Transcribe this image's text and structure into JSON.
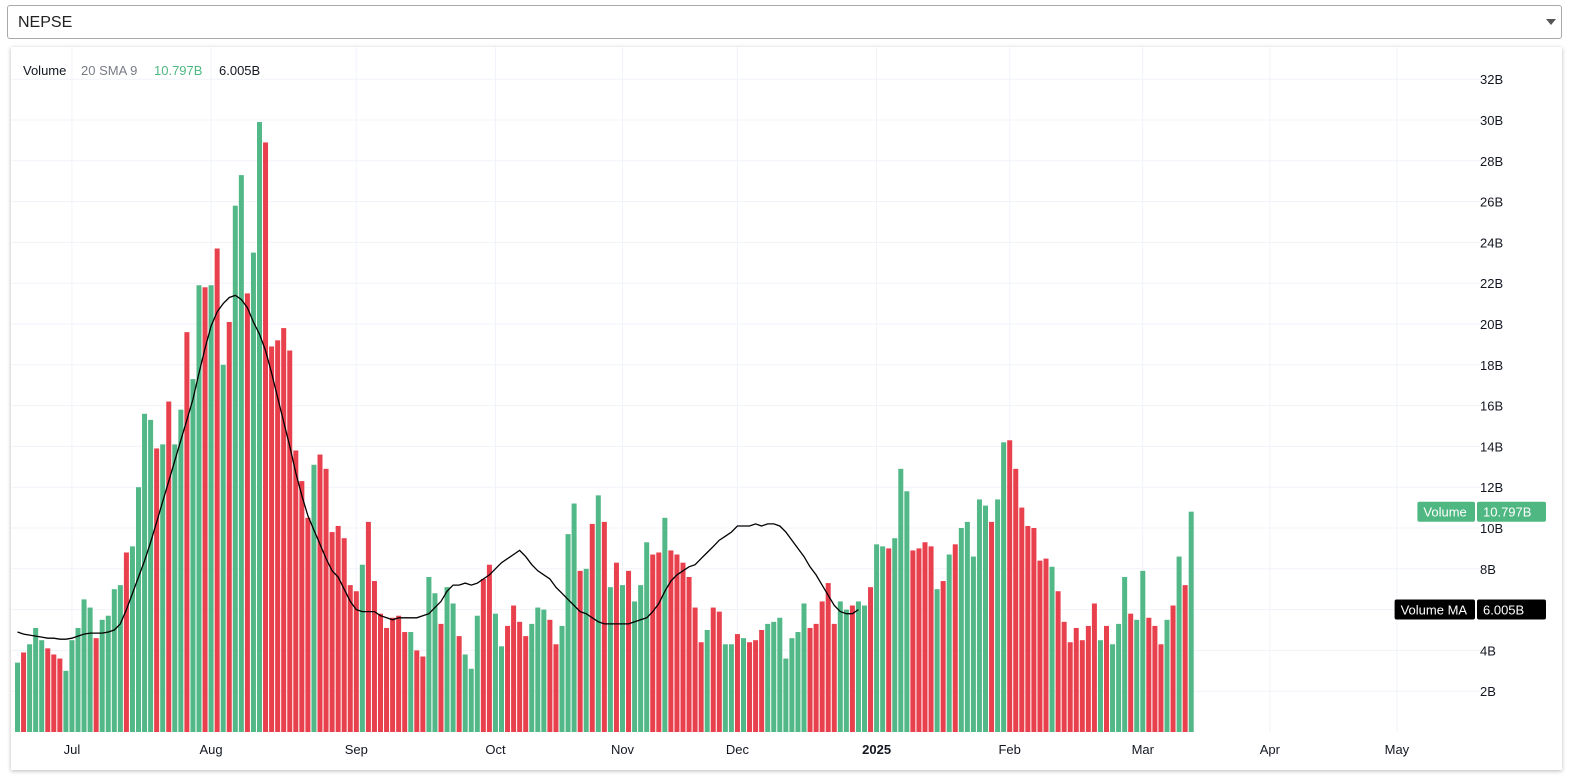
{
  "symbol_select": {
    "value": "NEPSE"
  },
  "legend": {
    "series_name": "Volume",
    "indicator_name": "20 SMA 9",
    "volume_value": "10.797B",
    "ma_value": "6.005B"
  },
  "price_tags": [
    {
      "label": "Volume",
      "value": "10.797B",
      "level": 10.797,
      "color": "#4fb782",
      "text_color": "#ffffff"
    },
    {
      "label": "Volume MA",
      "value": "6.005B",
      "level": 6.005,
      "color": "#000000",
      "text_color": "#ffffff"
    }
  ],
  "colors": {
    "up": "#52b887",
    "down": "#e8404d",
    "ma_line": "#000000",
    "grid": "#f0f3fa",
    "legend_up": "#4fb782"
  },
  "chart_data": {
    "type": "bar",
    "title": "",
    "xlabel": "",
    "ylabel": "",
    "ylim": [
      0,
      32.5
    ],
    "y_ticks": [
      {
        "value": 2,
        "label": "2B"
      },
      {
        "value": 4,
        "label": "4B"
      },
      {
        "value": 6,
        "label": "6B"
      },
      {
        "value": 8,
        "label": "8B"
      },
      {
        "value": 10,
        "label": "10B"
      },
      {
        "value": 12,
        "label": "12B"
      },
      {
        "value": 14,
        "label": "14B"
      },
      {
        "value": 16,
        "label": "16B"
      },
      {
        "value": 18,
        "label": "18B"
      },
      {
        "value": 20,
        "label": "20B"
      },
      {
        "value": 22,
        "label": "22B"
      },
      {
        "value": 24,
        "label": "24B"
      },
      {
        "value": 26,
        "label": "26B"
      },
      {
        "value": 28,
        "label": "28B"
      },
      {
        "value": 30,
        "label": "30B"
      },
      {
        "value": 32,
        "label": "32B"
      }
    ],
    "x_ticks": [
      {
        "label": "Jul",
        "index": 9,
        "bold": false
      },
      {
        "label": "Aug",
        "index": 32,
        "bold": false
      },
      {
        "label": "Sep",
        "index": 56,
        "bold": false
      },
      {
        "label": "Oct",
        "index": 79,
        "bold": false
      },
      {
        "label": "Nov",
        "index": 100,
        "bold": false
      },
      {
        "label": "Dec",
        "index": 119,
        "bold": false
      },
      {
        "label": "2025",
        "index": 142,
        "bold": true
      },
      {
        "label": "Feb",
        "index": 164,
        "bold": false
      },
      {
        "label": "Mar",
        "index": 186,
        "bold": false
      },
      {
        "label": "Apr",
        "index": 207,
        "bold": false
      },
      {
        "label": "May",
        "index": 228,
        "bold": false
      }
    ],
    "n_slots": 231,
    "volume_unit": "B",
    "volume": [
      3.4,
      3.9,
      4.3,
      5.1,
      4.5,
      4.1,
      3.8,
      3.6,
      3.0,
      4.5,
      5.1,
      6.5,
      6.1,
      4.6,
      5.5,
      5.7,
      7.0,
      7.2,
      8.8,
      9.1,
      12.0,
      15.6,
      15.3,
      13.9,
      14.1,
      16.2,
      14.1,
      15.8,
      19.6,
      17.3,
      21.9,
      21.8,
      21.9,
      23.7,
      18.0,
      20.1,
      25.8,
      27.3,
      21.5,
      23.5,
      29.9,
      28.9,
      18.9,
      19.2,
      19.8,
      18.7,
      13.8,
      12.3,
      10.5,
      13.1,
      13.6,
      12.9,
      9.8,
      10.1,
      9.5,
      7.2,
      6.9,
      8.2,
      10.3,
      7.4,
      5.8,
      5.1,
      5.6,
      5.7,
      4.9,
      4.9,
      4.0,
      3.7,
      7.6,
      6.8,
      5.3,
      7.1,
      6.3,
      4.7,
      3.8,
      3.1,
      5.7,
      7.5,
      8.2,
      5.8,
      4.2,
      5.2,
      6.2,
      5.4,
      4.7,
      5.3,
      6.1,
      6.0,
      5.5,
      4.3,
      5.2,
      9.7,
      11.2,
      7.9,
      8.0,
      10.2,
      11.6,
      10.3,
      7.1,
      8.3,
      7.2,
      7.9,
      6.4,
      7.2,
      9.3,
      8.7,
      8.8,
      10.5,
      8.9,
      8.7,
      8.3,
      7.6,
      6.1,
      4.4,
      5.0,
      6.1,
      5.9,
      4.3,
      4.3,
      4.8,
      4.6,
      4.4,
      4.5,
      5.0,
      5.3,
      5.4,
      5.6,
      3.6,
      4.6,
      4.9,
      6.3,
      5.1,
      5.3,
      6.4,
      7.3,
      5.3,
      6.4,
      6.0,
      6.2,
      6.4,
      6.2,
      7.1,
      9.2,
      9.1,
      9.0,
      9.5,
      12.9,
      11.8,
      8.9,
      9.0,
      9.3,
      9.1,
      7.0,
      7.4,
      8.7,
      9.2,
      10.0,
      10.3,
      8.6,
      11.4,
      11.1,
      10.3,
      11.4,
      14.2,
      14.3,
      12.9,
      11.0,
      10.1,
      10.0,
      8.4,
      8.5,
      8.1,
      6.9,
      5.4,
      4.4,
      5.1,
      4.5,
      5.2,
      6.3,
      4.5,
      5.2,
      4.3,
      5.3,
      7.6,
      5.8,
      5.5,
      7.9,
      5.6,
      5.2,
      4.3,
      5.5,
      6.2,
      8.6,
      7.2,
      10.8
    ],
    "direction": [
      "up",
      "down",
      "up",
      "up",
      "up",
      "down",
      "down",
      "down",
      "up",
      "up",
      "up",
      "up",
      "up",
      "down",
      "up",
      "up",
      "up",
      "up",
      "down",
      "up",
      "up",
      "up",
      "up",
      "down",
      "up",
      "down",
      "up",
      "up",
      "down",
      "up",
      "up",
      "down",
      "up",
      "down",
      "up",
      "down",
      "up",
      "up",
      "down",
      "up",
      "up",
      "down",
      "down",
      "down",
      "down",
      "down",
      "down",
      "down",
      "down",
      "up",
      "down",
      "down",
      "down",
      "down",
      "down",
      "down",
      "down",
      "up",
      "down",
      "down",
      "down",
      "down",
      "down",
      "down",
      "down",
      "up",
      "down",
      "down",
      "up",
      "up",
      "down",
      "up",
      "up",
      "down",
      "up",
      "up",
      "up",
      "down",
      "down",
      "up",
      "up",
      "down",
      "down",
      "down",
      "down",
      "up",
      "up",
      "up",
      "down",
      "down",
      "up",
      "up",
      "up",
      "down",
      "up",
      "down",
      "up",
      "down",
      "up",
      "down",
      "up",
      "down",
      "up",
      "up",
      "up",
      "down",
      "down",
      "up",
      "down",
      "down",
      "down",
      "down",
      "down",
      "down",
      "up",
      "down",
      "down",
      "up",
      "up",
      "down",
      "up",
      "down",
      "down",
      "down",
      "up",
      "up",
      "up",
      "up",
      "up",
      "up",
      "up",
      "down",
      "down",
      "down",
      "down",
      "down",
      "up",
      "up",
      "down",
      "up",
      "up",
      "down",
      "up",
      "up",
      "down",
      "up",
      "up",
      "up",
      "down",
      "down",
      "down",
      "down",
      "up",
      "down",
      "up",
      "down",
      "up",
      "up",
      "up",
      "up",
      "up",
      "down",
      "up",
      "up",
      "down",
      "down",
      "down",
      "down",
      "down",
      "down",
      "down",
      "up",
      "down",
      "down",
      "down",
      "down",
      "down",
      "down",
      "down",
      "up",
      "down",
      "up",
      "up",
      "up",
      "down",
      "up",
      "up",
      "down",
      "down",
      "down",
      "up",
      "down",
      "up",
      "down",
      "up"
    ],
    "ma_label": "20 SMA 9",
    "ma": [
      4.9,
      4.8,
      4.75,
      4.7,
      4.65,
      4.6,
      4.6,
      4.55,
      4.55,
      4.6,
      4.7,
      4.8,
      4.85,
      4.85,
      4.85,
      4.9,
      5.0,
      5.3,
      6.0,
      6.8,
      7.6,
      8.4,
      9.3,
      10.3,
      11.3,
      12.3,
      13.3,
      14.3,
      15.3,
      16.3,
      17.6,
      18.8,
      19.9,
      20.6,
      21.0,
      21.3,
      21.4,
      21.2,
      20.8,
      20.1,
      19.5,
      18.7,
      17.6,
      16.4,
      15.2,
      14.0,
      12.7,
      11.6,
      10.6,
      9.9,
      9.2,
      8.5,
      7.9,
      7.6,
      7.0,
      6.4,
      6.0,
      5.9,
      5.9,
      5.9,
      5.7,
      5.6,
      5.5,
      5.6,
      5.6,
      5.6,
      5.6,
      5.7,
      5.8,
      6.1,
      6.4,
      6.9,
      7.2,
      7.2,
      7.3,
      7.2,
      7.3,
      7.5,
      7.7,
      8.0,
      8.3,
      8.5,
      8.7,
      8.9,
      8.6,
      8.2,
      7.9,
      7.7,
      7.5,
      7.1,
      6.8,
      6.5,
      6.2,
      5.9,
      5.8,
      5.6,
      5.4,
      5.3,
      5.3,
      5.3,
      5.3,
      5.3,
      5.4,
      5.5,
      5.6,
      5.9,
      6.3,
      6.9,
      7.4,
      7.7,
      7.9,
      8.1,
      8.2,
      8.5,
      8.8,
      9.1,
      9.4,
      9.6,
      9.8,
      10.1,
      10.1,
      10.1,
      10.2,
      10.1,
      10.2,
      10.2,
      10.1,
      9.8,
      9.4,
      9.0,
      8.6,
      8.1,
      7.7,
      7.2,
      6.7,
      6.2,
      5.9,
      5.8,
      5.8,
      6.0
    ]
  }
}
